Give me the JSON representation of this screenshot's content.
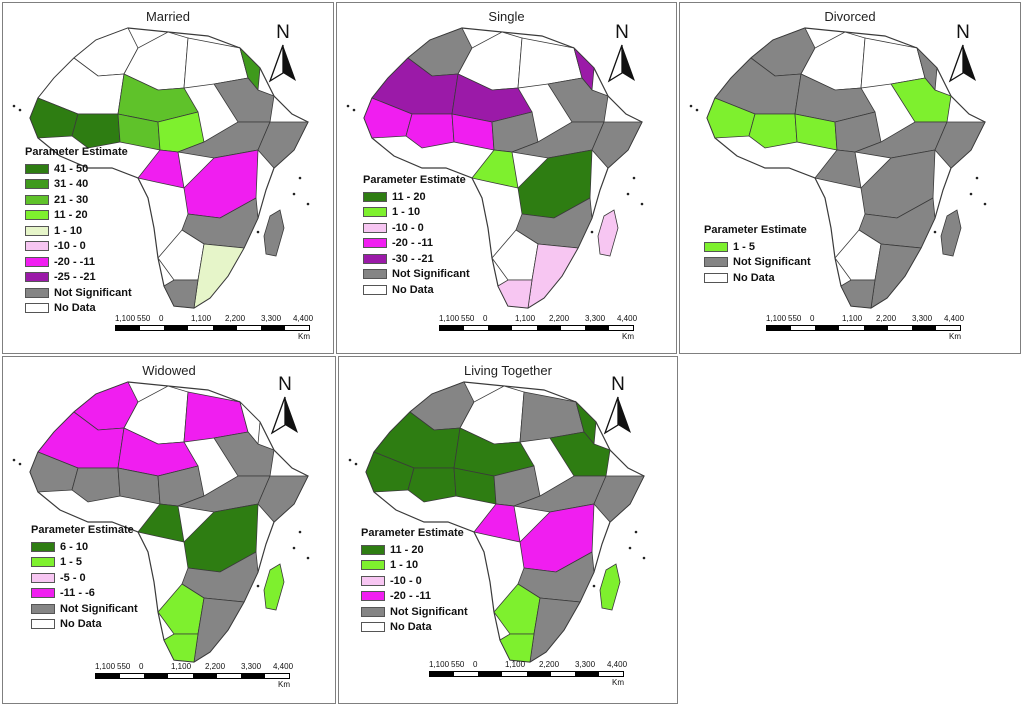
{
  "panels": [
    {
      "title": "Married",
      "legend_title": "Parameter Estimate",
      "legend": [
        {
          "label": "41 - 50",
          "color": "#2e7d12"
        },
        {
          "label": "31 - 40",
          "color": "#3f9a1c"
        },
        {
          "label": "21 - 30",
          "color": "#5fc22a"
        },
        {
          "label": "11 - 20",
          "color": "#7ef02e"
        },
        {
          "label": "1 - 10",
          "color": "#e6f5c9"
        },
        {
          "label": "-10 - 0",
          "color": "#f7c6f2"
        },
        {
          "label": "-20 - -11",
          "color": "#f01ef0"
        },
        {
          "label": "-25 - -21",
          "color": "#9b1aa8"
        },
        {
          "label": "Not Significant",
          "color": "#858585"
        },
        {
          "label": "No Data",
          "color": "#ffffff"
        }
      ]
    },
    {
      "title": "Single",
      "legend_title": "Parameter Estimate",
      "legend": [
        {
          "label": "11 - 20",
          "color": "#2e7d12"
        },
        {
          "label": "1 - 10",
          "color": "#7ef02e"
        },
        {
          "label": "-10 - 0",
          "color": "#f7c6f2"
        },
        {
          "label": "-20 - -11",
          "color": "#f01ef0"
        },
        {
          "label": "-30 - -21",
          "color": "#9b1aa8"
        },
        {
          "label": "Not Significant",
          "color": "#858585"
        },
        {
          "label": "No Data",
          "color": "#ffffff"
        }
      ]
    },
    {
      "title": "Divorced",
      "legend_title": "Parameter Estimate",
      "legend": [
        {
          "label": "1 - 5",
          "color": "#7ef02e"
        },
        {
          "label": "Not Significant",
          "color": "#858585"
        },
        {
          "label": "No Data",
          "color": "#ffffff"
        }
      ]
    },
    {
      "title": "Widowed",
      "legend_title": "Parameter Estimate",
      "legend": [
        {
          "label": "6 - 10",
          "color": "#2e7d12"
        },
        {
          "label": "1 - 5",
          "color": "#7ef02e"
        },
        {
          "label": "-5 - 0",
          "color": "#f7c6f2"
        },
        {
          "label": "-11 - -6",
          "color": "#f01ef0"
        },
        {
          "label": "Not Significant",
          "color": "#858585"
        },
        {
          "label": "No Data",
          "color": "#ffffff"
        }
      ]
    },
    {
      "title": "Living Together",
      "legend_title": "Parameter Estimate",
      "legend": [
        {
          "label": "11 - 20",
          "color": "#2e7d12"
        },
        {
          "label": "1 - 10",
          "color": "#7ef02e"
        },
        {
          "label": "-10 - 0",
          "color": "#f7c6f2"
        },
        {
          "label": "-20 - -11",
          "color": "#f01ef0"
        },
        {
          "label": "Not Significant",
          "color": "#858585"
        },
        {
          "label": "No Data",
          "color": "#ffffff"
        }
      ]
    }
  ],
  "north_label": "N",
  "scale": {
    "ticks": [
      "1,100",
      "550",
      "0",
      "1,100",
      "2,200",
      "3,300",
      "4,400"
    ],
    "unit": "Km"
  },
  "colors": {
    "not_significant": "#858585",
    "no_data": "#ffffff",
    "border": "#3a3a3a"
  }
}
